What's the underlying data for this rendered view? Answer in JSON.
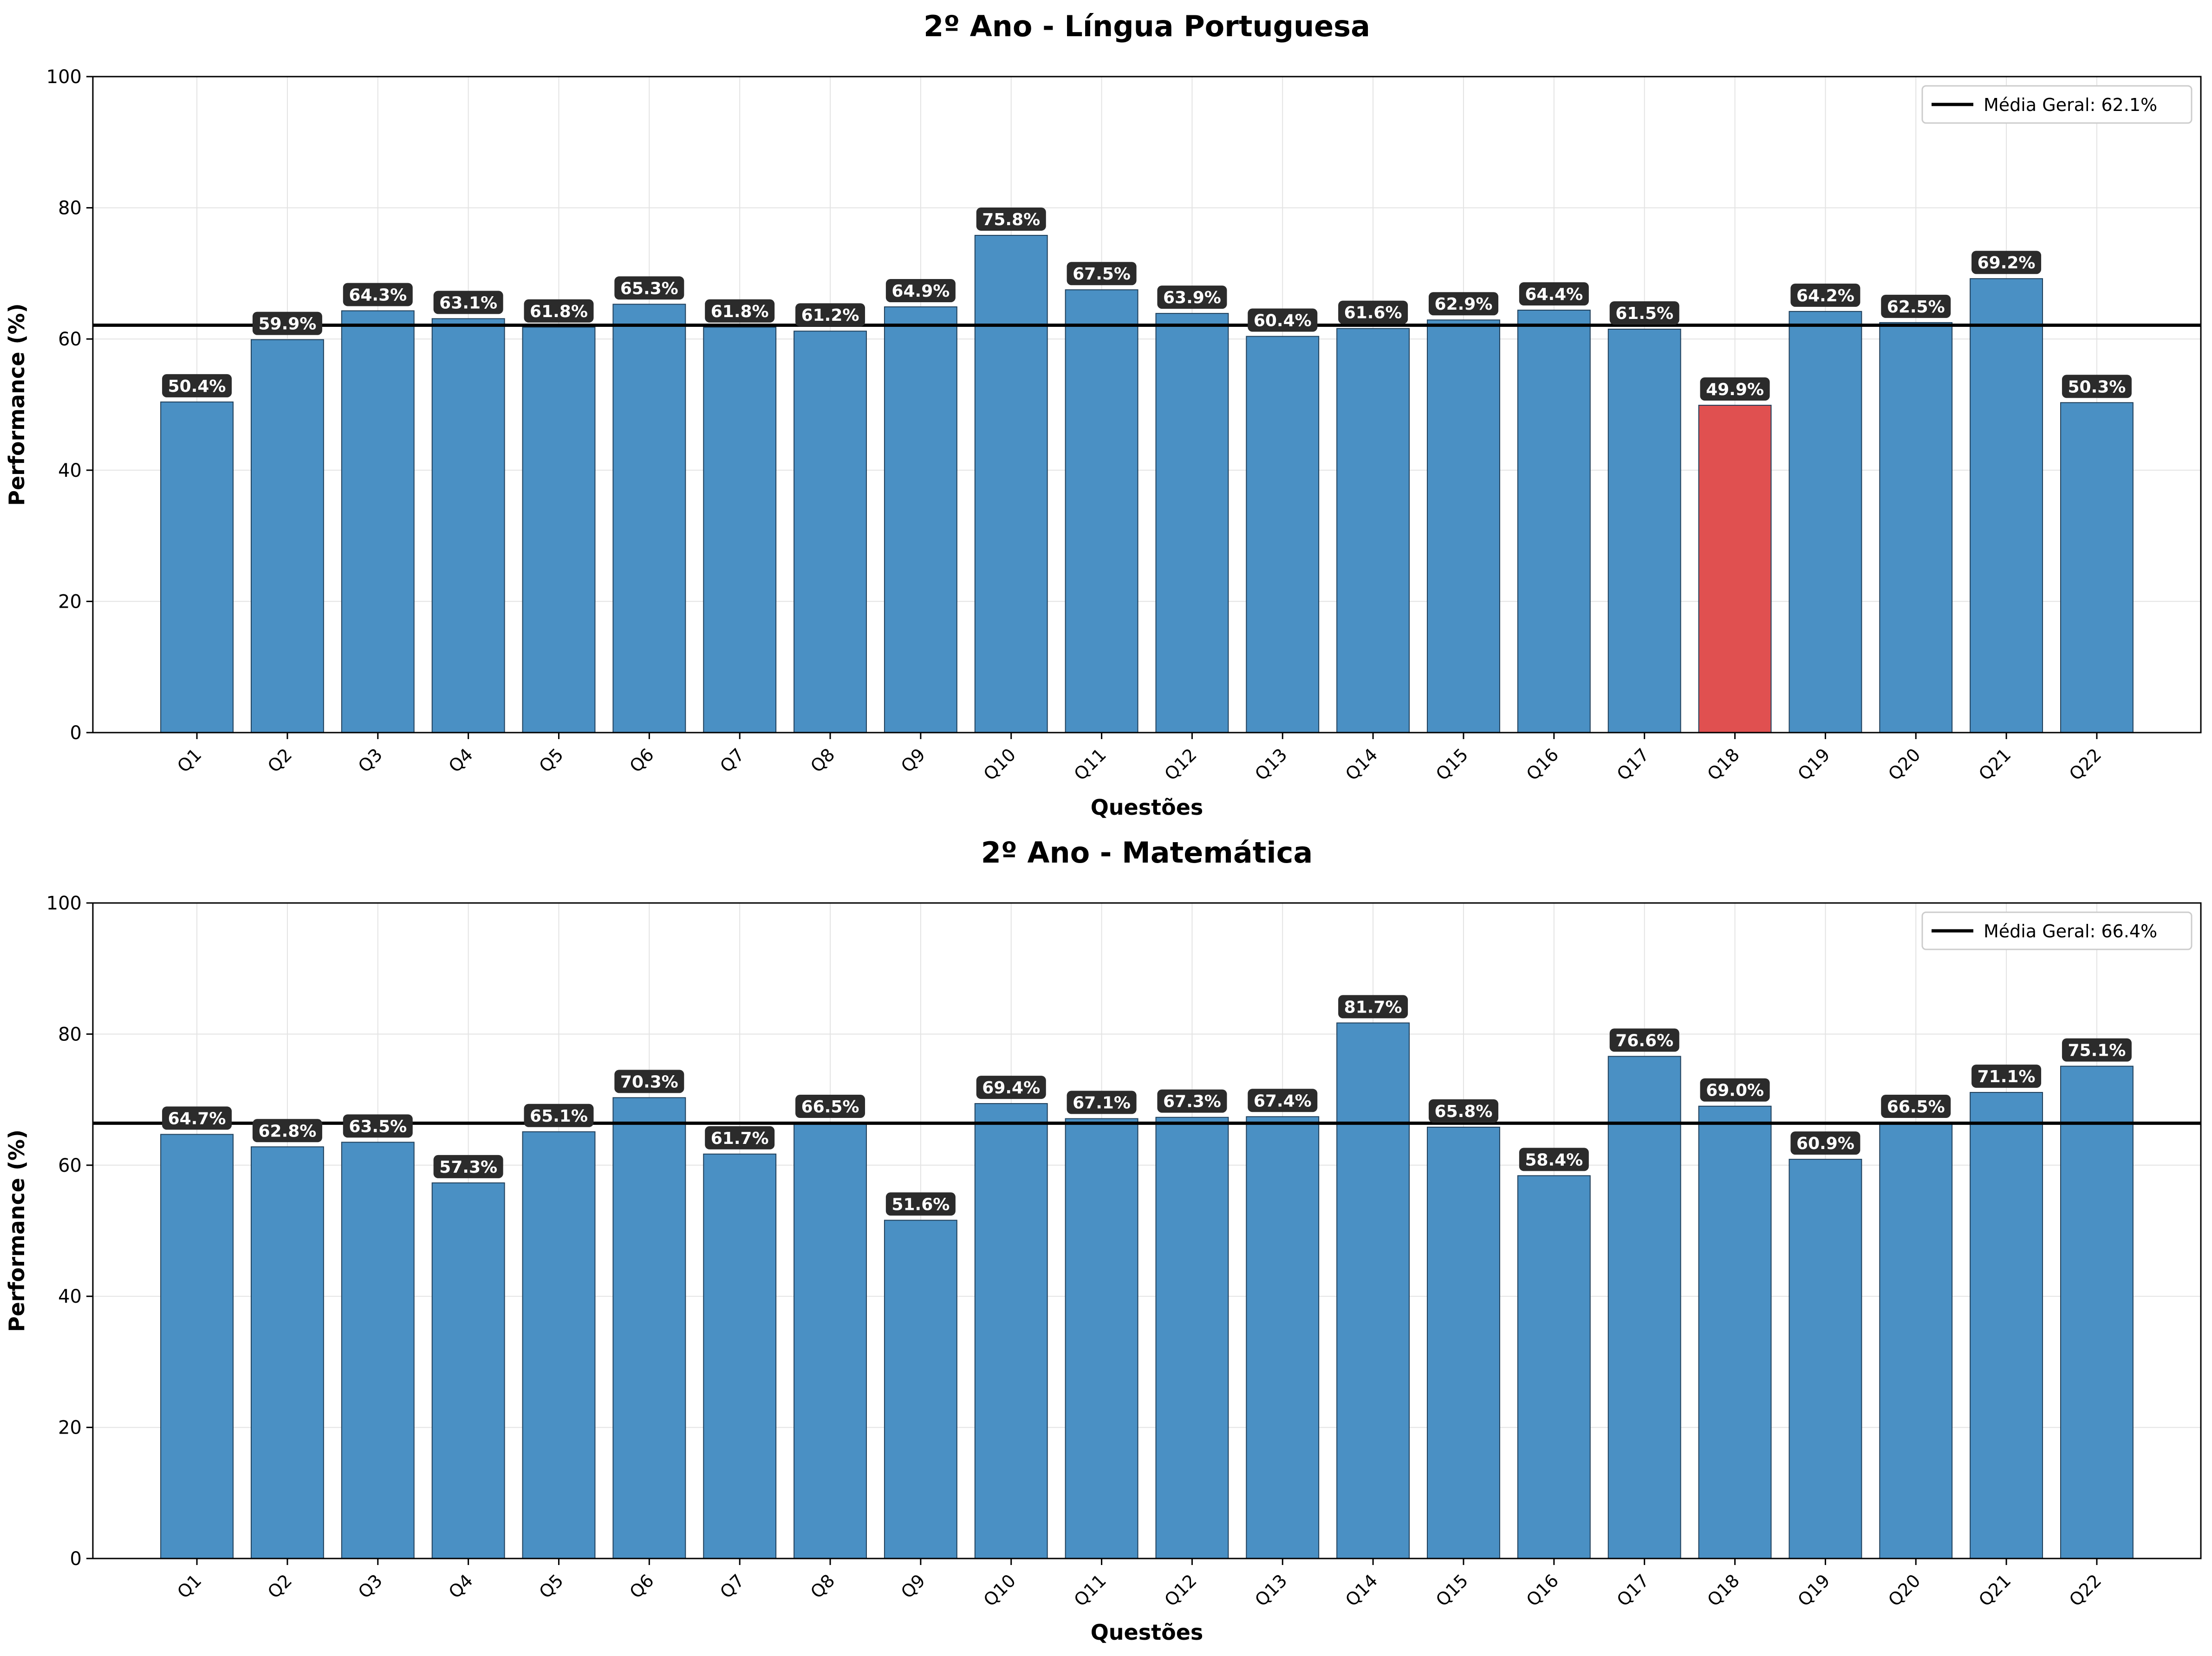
{
  "chart_data": [
    {
      "type": "bar",
      "title": "2º Ano - Língua Portuguesa",
      "xlabel": "Questões",
      "ylabel": "Performance (%)",
      "ylim": [
        0,
        100
      ],
      "yticks": [
        "0",
        "20",
        "40",
        "60",
        "80",
        "100"
      ],
      "grid": true,
      "legend_position": "top-right",
      "categories": [
        "Q1",
        "Q2",
        "Q3",
        "Q4",
        "Q5",
        "Q6",
        "Q7",
        "Q8",
        "Q9",
        "Q10",
        "Q11",
        "Q12",
        "Q13",
        "Q14",
        "Q15",
        "Q16",
        "Q17",
        "Q18",
        "Q19",
        "Q20",
        "Q21",
        "Q22"
      ],
      "values": [
        50.4,
        59.9,
        64.3,
        63.1,
        61.8,
        65.3,
        61.8,
        61.2,
        64.9,
        75.8,
        67.5,
        63.9,
        60.4,
        61.6,
        62.9,
        64.4,
        61.5,
        49.9,
        64.2,
        62.5,
        69.2,
        50.3
      ],
      "value_labels": [
        "50.4%",
        "59.9%",
        "64.3%",
        "63.1%",
        "61.8%",
        "65.3%",
        "61.8%",
        "61.2%",
        "64.9%",
        "75.8%",
        "67.5%",
        "63.9%",
        "60.4%",
        "61.6%",
        "62.9%",
        "64.4%",
        "61.5%",
        "49.9%",
        "64.2%",
        "62.5%",
        "69.2%",
        "50.3%"
      ],
      "highlight_index": 17,
      "reference_line": {
        "value": 62.1,
        "label": "Média Geral: 62.1%"
      },
      "colors": {
        "bar": "#4a90c4",
        "highlight": "#e05050",
        "bar_edge": "#1f3f5a",
        "line": "#000000",
        "label_bg": "#2b2b2b",
        "label_text": "#ffffff",
        "grid": "#e3e3e3"
      }
    },
    {
      "type": "bar",
      "title": "2º Ano - Matemática",
      "xlabel": "Questões",
      "ylabel": "Performance (%)",
      "ylim": [
        0,
        100
      ],
      "yticks": [
        "0",
        "20",
        "40",
        "60",
        "80",
        "100"
      ],
      "grid": true,
      "legend_position": "top-right",
      "categories": [
        "Q1",
        "Q2",
        "Q3",
        "Q4",
        "Q5",
        "Q6",
        "Q7",
        "Q8",
        "Q9",
        "Q10",
        "Q11",
        "Q12",
        "Q13",
        "Q14",
        "Q15",
        "Q16",
        "Q17",
        "Q18",
        "Q19",
        "Q20",
        "Q21",
        "Q22"
      ],
      "values": [
        64.7,
        62.8,
        63.5,
        57.3,
        65.1,
        70.3,
        61.7,
        66.5,
        51.6,
        69.4,
        67.1,
        67.3,
        67.4,
        81.7,
        65.8,
        58.4,
        76.6,
        69.0,
        60.9,
        66.5,
        71.1,
        75.1
      ],
      "value_labels": [
        "64.7%",
        "62.8%",
        "63.5%",
        "57.3%",
        "65.1%",
        "70.3%",
        "61.7%",
        "66.5%",
        "51.6%",
        "69.4%",
        "67.1%",
        "67.3%",
        "67.4%",
        "81.7%",
        "65.8%",
        "58.4%",
        "76.6%",
        "69.0%",
        "60.9%",
        "66.5%",
        "71.1%",
        "75.1%"
      ],
      "highlight_index": -1,
      "reference_line": {
        "value": 66.4,
        "label": "Média Geral: 66.4%"
      },
      "colors": {
        "bar": "#4a90c4",
        "highlight": "#e05050",
        "bar_edge": "#1f3f5a",
        "line": "#000000",
        "label_bg": "#2b2b2b",
        "label_text": "#ffffff",
        "grid": "#e3e3e3"
      }
    }
  ]
}
